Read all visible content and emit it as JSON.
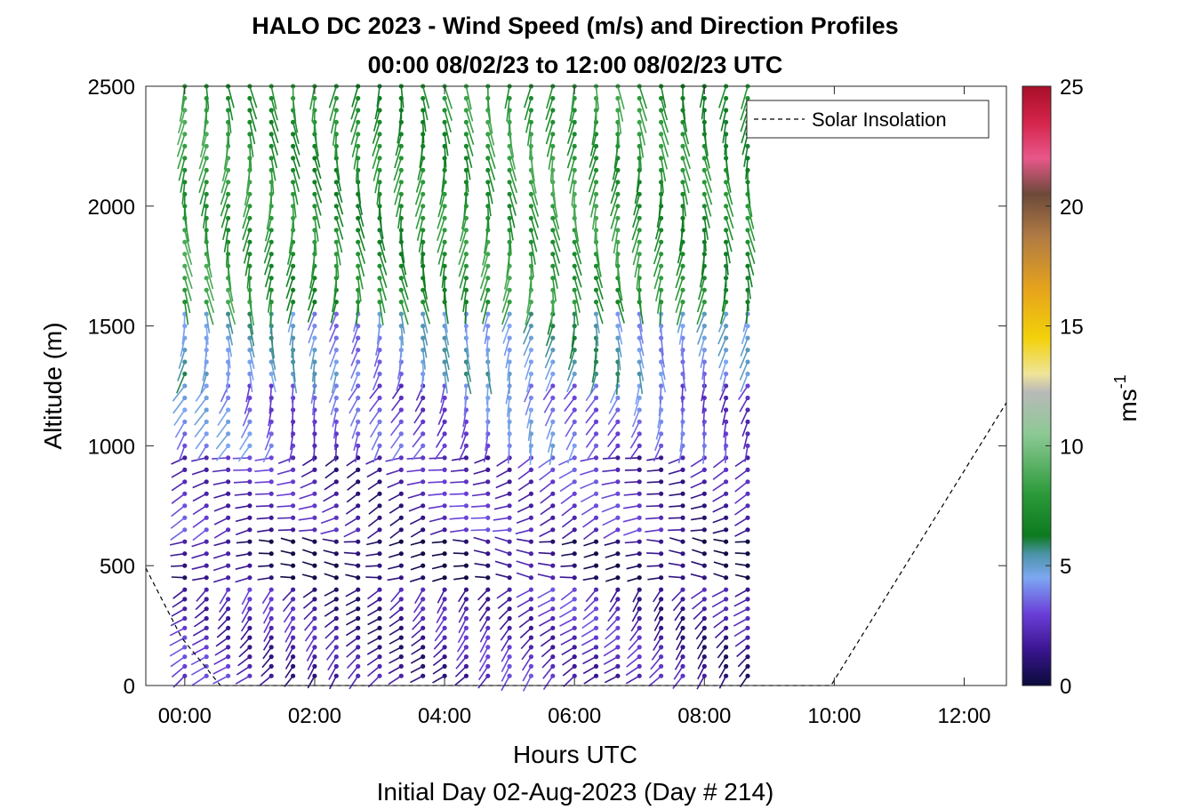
{
  "chart_data": {
    "type": "wind-barb-profile",
    "title": "HALO DC 2023 - Wind Speed (m/s) and Direction Profiles",
    "subtitle": "00:00 08/02/23 to 12:00 08/02/23  UTC",
    "xlabel": "Hours UTC",
    "xlabel2": "Initial Day 02-Aug-2023 (Day # 214)",
    "ylabel": "Altitude (m)",
    "xlim": [
      -0.6,
      12.65
    ],
    "ylim": [
      0,
      2500
    ],
    "x_ticks": [
      0,
      2,
      4,
      6,
      8,
      10,
      12
    ],
    "x_tick_labels": [
      "00:00",
      "02:00",
      "04:00",
      "06:00",
      "08:00",
      "10:00",
      "12:00"
    ],
    "y_ticks": [
      0,
      500,
      1000,
      1500,
      2000,
      2500
    ],
    "y_tick_labels": [
      "0",
      "500",
      "1000",
      "1500",
      "2000",
      "2500"
    ],
    "colorbar": {
      "label": "ms",
      "label_superscript": "-1",
      "range": [
        0,
        25
      ],
      "ticks": [
        0,
        5,
        10,
        15,
        20,
        25
      ],
      "tick_labels": [
        "0",
        "5",
        "10",
        "15",
        "20",
        "25"
      ],
      "colormap": [
        [
          0.0,
          "#0b0b3a"
        ],
        [
          0.06,
          "#3a1590"
        ],
        [
          0.12,
          "#6a3fd8"
        ],
        [
          0.18,
          "#7da7f2"
        ],
        [
          0.22,
          "#4a93a6"
        ],
        [
          0.25,
          "#0c7a1e"
        ],
        [
          0.32,
          "#2c9a3a"
        ],
        [
          0.42,
          "#8dc995"
        ],
        [
          0.49,
          "#b9b9b9"
        ],
        [
          0.52,
          "#f0e49a"
        ],
        [
          0.58,
          "#f2d10a"
        ],
        [
          0.66,
          "#e6a41c"
        ],
        [
          0.75,
          "#b07a44"
        ],
        [
          0.82,
          "#6c4a3a"
        ],
        [
          0.88,
          "#e8578a"
        ],
        [
          0.94,
          "#d4244a"
        ],
        [
          1.0,
          "#a80f28"
        ]
      ]
    },
    "legend": {
      "location": "top-right",
      "entries": [
        {
          "label": "Solar Insolation",
          "style": "dashed",
          "color": "#000000"
        }
      ]
    },
    "solar_insolation": {
      "x": [
        -0.6,
        -0.05,
        0.55,
        9.95,
        12.65
      ],
      "y": [
        490,
        200,
        0,
        0,
        1180
      ]
    },
    "barbs": {
      "times": [
        0.0,
        0.333,
        0.667,
        1.0,
        1.333,
        1.667,
        2.0,
        2.333,
        2.667,
        3.0,
        3.333,
        3.667,
        4.0,
        4.333,
        4.667,
        5.0,
        5.333,
        5.667,
        6.0,
        6.333,
        6.667,
        7.0,
        7.333,
        7.667,
        8.0,
        8.333,
        8.667
      ],
      "altitude_levels": [
        40,
        80,
        120,
        160,
        200,
        240,
        280,
        320,
        360,
        400,
        450,
        500,
        550,
        600,
        650,
        700,
        750,
        800,
        850,
        900,
        950,
        1000,
        1050,
        1100,
        1150,
        1200,
        1250,
        1300,
        1350,
        1400,
        1450,
        1500,
        1550,
        1600,
        1650,
        1700,
        1750,
        1800,
        1850,
        1900,
        1950,
        2000,
        2050,
        2100,
        2150,
        2200,
        2250,
        2300,
        2350,
        2400,
        2450,
        2500
      ],
      "speed_regimes": [
        {
          "alt_from": 0,
          "alt_to": 450,
          "speed_ms": 2.0,
          "direction_deg": 225
        },
        {
          "alt_from": 450,
          "alt_to": 650,
          "speed_ms": 0.8,
          "direction_deg": 270
        },
        {
          "alt_from": 650,
          "alt_to": 1000,
          "speed_ms": 2.2,
          "direction_deg": 250
        },
        {
          "alt_from": 1000,
          "alt_to": 1300,
          "speed_ms": 3.5,
          "direction_deg": 200
        },
        {
          "alt_from": 1300,
          "alt_to": 1600,
          "speed_ms": 4.8,
          "direction_deg": 185
        },
        {
          "alt_from": 1600,
          "alt_to": 2500,
          "speed_ms": 7.5,
          "direction_deg": 180
        }
      ]
    }
  }
}
